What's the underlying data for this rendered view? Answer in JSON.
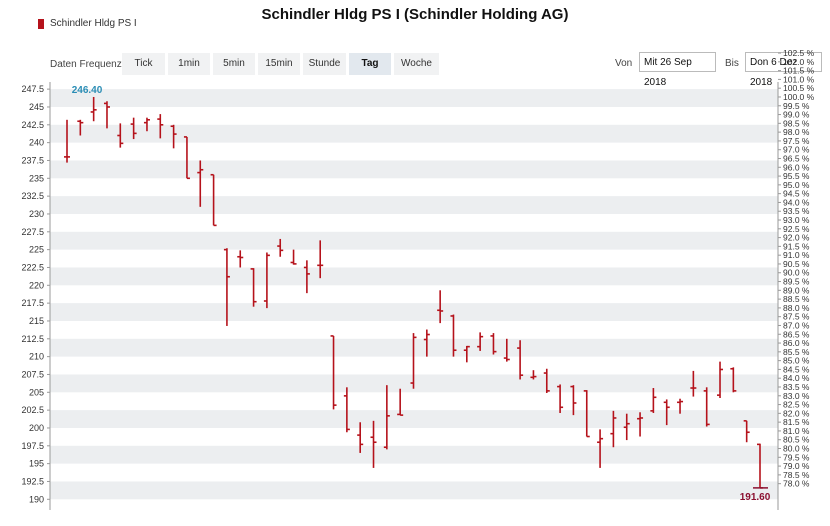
{
  "title": "Schindler Hldg PS I (Schindler Holding AG)",
  "legend": {
    "label": "Schindler Hldg PS I",
    "color": "#b5121b"
  },
  "toolbar": {
    "freq_label": "Daten Frequenz",
    "tabs": [
      "Tick",
      "1min",
      "5min",
      "15min",
      "Stunde",
      "Tag",
      "Woche"
    ],
    "active_tab": "Tag",
    "from_label": "Von",
    "from_value": "Mit 26 Sep 2018",
    "to_label": "Bis",
    "to_value": "Don 6 Dez 2018"
  },
  "chart_data": {
    "type": "ohlc",
    "series_color": "#b5121b",
    "ylim": [
      188.5,
      248.5
    ],
    "y_ticks": [
      190,
      192.5,
      195,
      197.5,
      200,
      202.5,
      205,
      207.5,
      210,
      212.5,
      215,
      217.5,
      220,
      222.5,
      225,
      227.5,
      230,
      232.5,
      235,
      237.5,
      240,
      242.5,
      245,
      247.5
    ],
    "y_tick_labels": [
      "190",
      "192.5",
      "195",
      "197.5",
      "200",
      "202.5",
      "205",
      "207.5",
      "210",
      "212.5",
      "215",
      "217.5",
      "220",
      "222.5",
      "225",
      "227.5",
      "230",
      "232.5",
      "235",
      "237.5",
      "240",
      "242.5",
      "245",
      "247.5"
    ],
    "pct_ticks": [
      "78.0 %",
      "78.5 %",
      "79.0 %",
      "79.5 %",
      "80.0 %",
      "80.5 %",
      "81.0 %",
      "81.5 %",
      "82.0 %",
      "82.5 %",
      "83.0 %",
      "83.5 %",
      "84.0 %",
      "84.5 %",
      "85.0 %",
      "85.5 %",
      "86.0 %",
      "86.5 %",
      "87.0 %",
      "87.5 %",
      "88.0 %",
      "88.5 %",
      "89.0 %",
      "89.5 %",
      "90.0 %",
      "90.5 %",
      "91.0 %",
      "91.5 %",
      "92.0 %",
      "92.5 %",
      "93.0 %",
      "93.5 %",
      "94.0 %",
      "94.5 %",
      "95.0 %",
      "95.5 %",
      "96.0 %",
      "96.5 %",
      "97.0 %",
      "97.5 %",
      "98.0 %",
      "98.5 %",
      "99.0 %",
      "99.5 %",
      "100.0 %",
      "100.5 %",
      "101.0 %",
      "101.5 %",
      "102.0 %",
      "102.5 %"
    ],
    "pct_base": 246.4,
    "grid": "horizontal bands",
    "annotations": [
      {
        "text": "246.40",
        "type": "max",
        "color": "#2a8db5"
      },
      {
        "text": "191.60",
        "type": "min",
        "color": "#8b1030"
      }
    ],
    "bars": [
      {
        "o": 238.0,
        "h": 243.2,
        "l": 237.2,
        "c": 238.0
      },
      {
        "o": 243.0,
        "h": 243.2,
        "l": 241.0,
        "c": 242.8
      },
      {
        "o": 244.3,
        "h": 246.4,
        "l": 243.0,
        "c": 244.6
      },
      {
        "o": 245.5,
        "h": 245.8,
        "l": 242.0,
        "c": 245.0
      },
      {
        "o": 241.0,
        "h": 242.7,
        "l": 239.3,
        "c": 239.9
      },
      {
        "o": 242.6,
        "h": 243.5,
        "l": 240.5,
        "c": 241.3
      },
      {
        "o": 242.8,
        "h": 243.5,
        "l": 241.6,
        "c": 243.2
      },
      {
        "o": 243.3,
        "h": 244.0,
        "l": 240.6,
        "c": 242.5
      },
      {
        "o": 242.3,
        "h": 242.5,
        "l": 239.2,
        "c": 241.2
      },
      {
        "o": 240.8,
        "h": 240.8,
        "l": 235.0,
        "c": 235.0
      },
      {
        "o": 235.8,
        "h": 237.5,
        "l": 231.0,
        "c": 236.2
      },
      {
        "o": 235.5,
        "h": 235.5,
        "l": 228.4,
        "c": 228.4
      },
      {
        "o": 225.0,
        "h": 225.2,
        "l": 214.3,
        "c": 221.2
      },
      {
        "o": 224.0,
        "h": 224.9,
        "l": 222.5,
        "c": 223.9
      },
      {
        "o": 222.3,
        "h": 222.4,
        "l": 217.0,
        "c": 217.7
      },
      {
        "o": 217.8,
        "h": 224.6,
        "l": 216.8,
        "c": 224.2
      },
      {
        "o": 225.5,
        "h": 226.5,
        "l": 224.0,
        "c": 224.9
      },
      {
        "o": 223.2,
        "h": 225.0,
        "l": 222.9,
        "c": 223.0
      },
      {
        "o": 222.5,
        "h": 223.5,
        "l": 218.9,
        "c": 221.6
      },
      {
        "o": 222.8,
        "h": 226.3,
        "l": 221.0,
        "c": 222.8
      },
      {
        "o": 212.9,
        "h": 212.9,
        "l": 202.6,
        "c": 203.2
      },
      {
        "o": 204.5,
        "h": 205.7,
        "l": 199.4,
        "c": 199.8
      },
      {
        "o": 199.0,
        "h": 200.8,
        "l": 196.5,
        "c": 197.7
      },
      {
        "o": 198.7,
        "h": 201.0,
        "l": 194.4,
        "c": 198.0
      },
      {
        "o": 197.3,
        "h": 206.0,
        "l": 197.0,
        "c": 201.7
      },
      {
        "o": 201.9,
        "h": 205.5,
        "l": 201.8,
        "c": 201.8
      },
      {
        "o": 206.3,
        "h": 213.3,
        "l": 205.5,
        "c": 212.7
      },
      {
        "o": 212.4,
        "h": 213.8,
        "l": 210.0,
        "c": 213.1
      },
      {
        "o": 216.5,
        "h": 219.3,
        "l": 214.7,
        "c": 216.4
      },
      {
        "o": 215.7,
        "h": 215.9,
        "l": 210.0,
        "c": 210.9
      },
      {
        "o": 210.9,
        "h": 211.5,
        "l": 209.2,
        "c": 211.4
      },
      {
        "o": 211.4,
        "h": 213.4,
        "l": 210.8,
        "c": 212.8
      },
      {
        "o": 212.9,
        "h": 213.3,
        "l": 210.3,
        "c": 210.7
      },
      {
        "o": 209.8,
        "h": 212.5,
        "l": 209.3,
        "c": 209.6
      },
      {
        "o": 211.2,
        "h": 212.3,
        "l": 206.8,
        "c": 207.4
      },
      {
        "o": 207.1,
        "h": 208.1,
        "l": 206.8,
        "c": 207.2
      },
      {
        "o": 207.7,
        "h": 208.3,
        "l": 204.9,
        "c": 205.2
      },
      {
        "o": 205.8,
        "h": 206.1,
        "l": 202.1,
        "c": 202.9
      },
      {
        "o": 205.8,
        "h": 206.0,
        "l": 201.8,
        "c": 203.5
      },
      {
        "o": 205.2,
        "h": 205.3,
        "l": 198.8,
        "c": 198.8
      },
      {
        "o": 198.0,
        "h": 199.8,
        "l": 194.4,
        "c": 198.5
      },
      {
        "o": 199.2,
        "h": 202.4,
        "l": 197.3,
        "c": 201.4
      },
      {
        "o": 200.1,
        "h": 202.0,
        "l": 198.3,
        "c": 200.6
      },
      {
        "o": 201.3,
        "h": 202.2,
        "l": 198.8,
        "c": 201.4
      },
      {
        "o": 202.4,
        "h": 205.6,
        "l": 202.1,
        "c": 204.3
      },
      {
        "o": 203.6,
        "h": 204.0,
        "l": 200.4,
        "c": 202.9
      },
      {
        "o": 203.6,
        "h": 204.1,
        "l": 202.0,
        "c": 203.7
      },
      {
        "o": 205.6,
        "h": 208.0,
        "l": 204.4,
        "c": 205.6
      },
      {
        "o": 205.2,
        "h": 205.7,
        "l": 200.2,
        "c": 200.5
      },
      {
        "o": 204.6,
        "h": 209.3,
        "l": 204.2,
        "c": 208.2
      },
      {
        "o": 208.3,
        "h": 208.5,
        "l": 205.0,
        "c": 205.2
      },
      {
        "o": 201.0,
        "h": 201.0,
        "l": 198.0,
        "c": 199.4
      },
      {
        "o": 197.7,
        "h": 197.8,
        "l": 191.6,
        "c": 191.6
      }
    ]
  }
}
